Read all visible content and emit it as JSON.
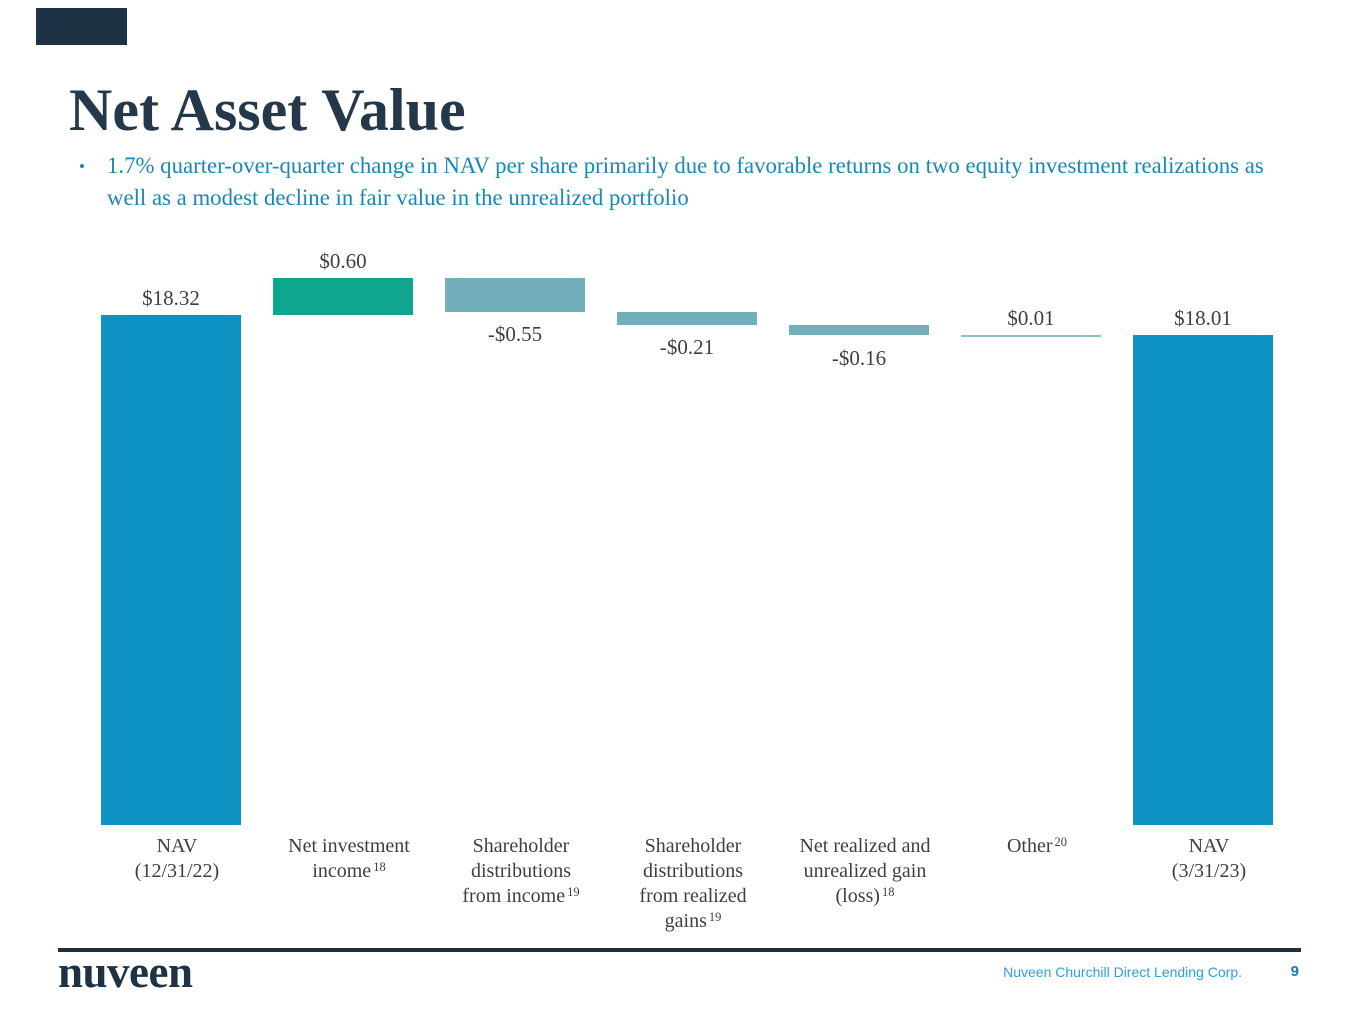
{
  "title": "Net Asset Value",
  "bullet": {
    "text": "1.7% quarter-over-quarter change in NAV per share primarily due to favorable returns on two equity investment realizations as\nwell as a modest decline in fair value in the unrealized portfolio",
    "marker": "•",
    "color": "#1b87b3"
  },
  "colors": {
    "title_navy": "#24384a",
    "nav_bar_blue": "#0f93c4",
    "income_bar_green": "#0fa690",
    "distribution_bar_teal": "#73aebb",
    "other_line_teal": "#8fbfca",
    "label_gray": "#3f3f3f",
    "footer_navy": "#1f2f3e",
    "footer_company_blue": "#2f9fd9"
  },
  "chart_data": {
    "type": "bar",
    "subtype": "waterfall",
    "title": "",
    "xlabel": "",
    "ylabel": "",
    "unit": "$ per share",
    "categories": [
      "NAV (12/31/22)",
      "Net investment income",
      "Shareholder distributions from income",
      "Shareholder distributions from realized gains",
      "Net realized and unrealized gain (loss)",
      "Other",
      "NAV (3/31/23)"
    ],
    "values": [
      18.32,
      0.6,
      -0.55,
      -0.21,
      -0.16,
      0.01,
      18.01
    ],
    "columns": [
      {
        "kind": "total",
        "value": 18.32,
        "display": "$18.32",
        "label_pos": "above",
        "color": "#0f93c4",
        "label_lines": [
          "NAV",
          "(12/31/22)"
        ],
        "sup": null
      },
      {
        "kind": "delta",
        "value": 0.6,
        "display": "$0.60",
        "label_pos": "above",
        "color": "#0fa690",
        "label_lines": [
          "Net investment",
          "income"
        ],
        "sup": "18"
      },
      {
        "kind": "delta",
        "value": -0.55,
        "display": "-$0.55",
        "label_pos": "below",
        "color": "#73aebb",
        "label_lines": [
          "Shareholder",
          "distributions",
          "from income"
        ],
        "sup": "19"
      },
      {
        "kind": "delta",
        "value": -0.21,
        "display": "-$0.21",
        "label_pos": "below",
        "color": "#73aebb",
        "label_lines": [
          "Shareholder",
          "distributions",
          "from realized",
          "gains"
        ],
        "sup": "19"
      },
      {
        "kind": "delta",
        "value": -0.16,
        "display": "-$0.16",
        "label_pos": "below",
        "color": "#73aebb",
        "label_lines": [
          "Net realized and",
          "unrealized gain",
          "(loss)"
        ],
        "sup": "18"
      },
      {
        "kind": "delta",
        "value": 0.01,
        "display": "$0.01",
        "label_pos": "above",
        "color": "#8fbfca",
        "label_lines": [
          "Other"
        ],
        "sup": "20"
      },
      {
        "kind": "total",
        "value": 18.01,
        "display": "$18.01",
        "label_pos": "above",
        "color": "#0f93c4",
        "label_lines": [
          "NAV",
          "(3/31/23)"
        ],
        "sup": null
      }
    ]
  },
  "footer": {
    "logo": "nuveen",
    "company": "Nuveen Churchill Direct Lending Corp.",
    "page": "9"
  }
}
